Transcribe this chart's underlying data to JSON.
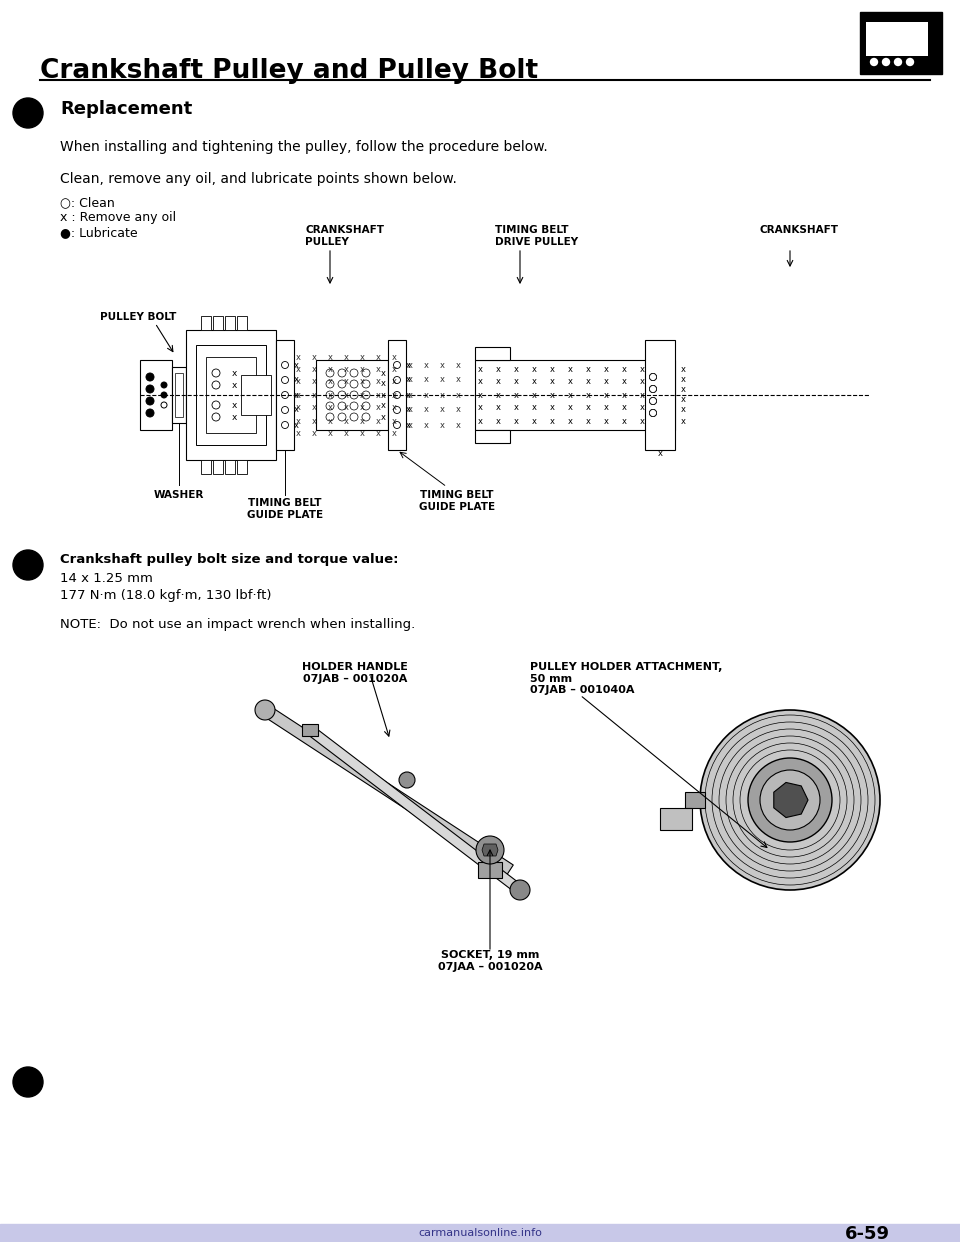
{
  "title": "Crankshaft Pulley and Pulley Bolt",
  "section_title": "Replacement",
  "body_text_1": "When installing and tightening the pulley, follow the procedure below.",
  "body_text_2": "Clean, remove any oil, and lubricate points shown below.",
  "legend_1": "○: Clean",
  "legend_2": "x : Remove any oil",
  "legend_3": "●: Lubricate",
  "torque_title": "Crankshaft pulley bolt size and torque value:",
  "torque_line1": "14 x 1.25 mm",
  "torque_line2": "177 N·m (18.0 kgf·m, 130 lbf·ft)",
  "note": "NOTE:  Do not use an impact wrench when installing.",
  "label_pulley_bolt": "PULLEY BOLT",
  "label_crankshaft_pulley": "CRANKSHAFT\nPULLEY",
  "label_timing_belt_drive": "TIMING BELT\nDRIVE PULLEY",
  "label_crankshaft": "CRANKSHAFT",
  "label_washer": "WASHER",
  "label_timing_belt_guide1": "TIMING BELT\nGUIDE PLATE",
  "label_timing_belt_guide2": "TIMING BELT\nGUIDE PLATE",
  "label_holder_handle": "HOLDER HANDLE\n07JAB – 001020A",
  "label_pulley_holder": "PULLEY HOLDER ATTACHMENT,\n50 mm\n07JAB – 001040A",
  "label_socket": "SOCKET, 19 mm\n07JAA – 001020A",
  "page_number": "6-59",
  "watermark": "carmanualsonline.info",
  "bg_color": "#ffffff",
  "text_color": "#000000"
}
